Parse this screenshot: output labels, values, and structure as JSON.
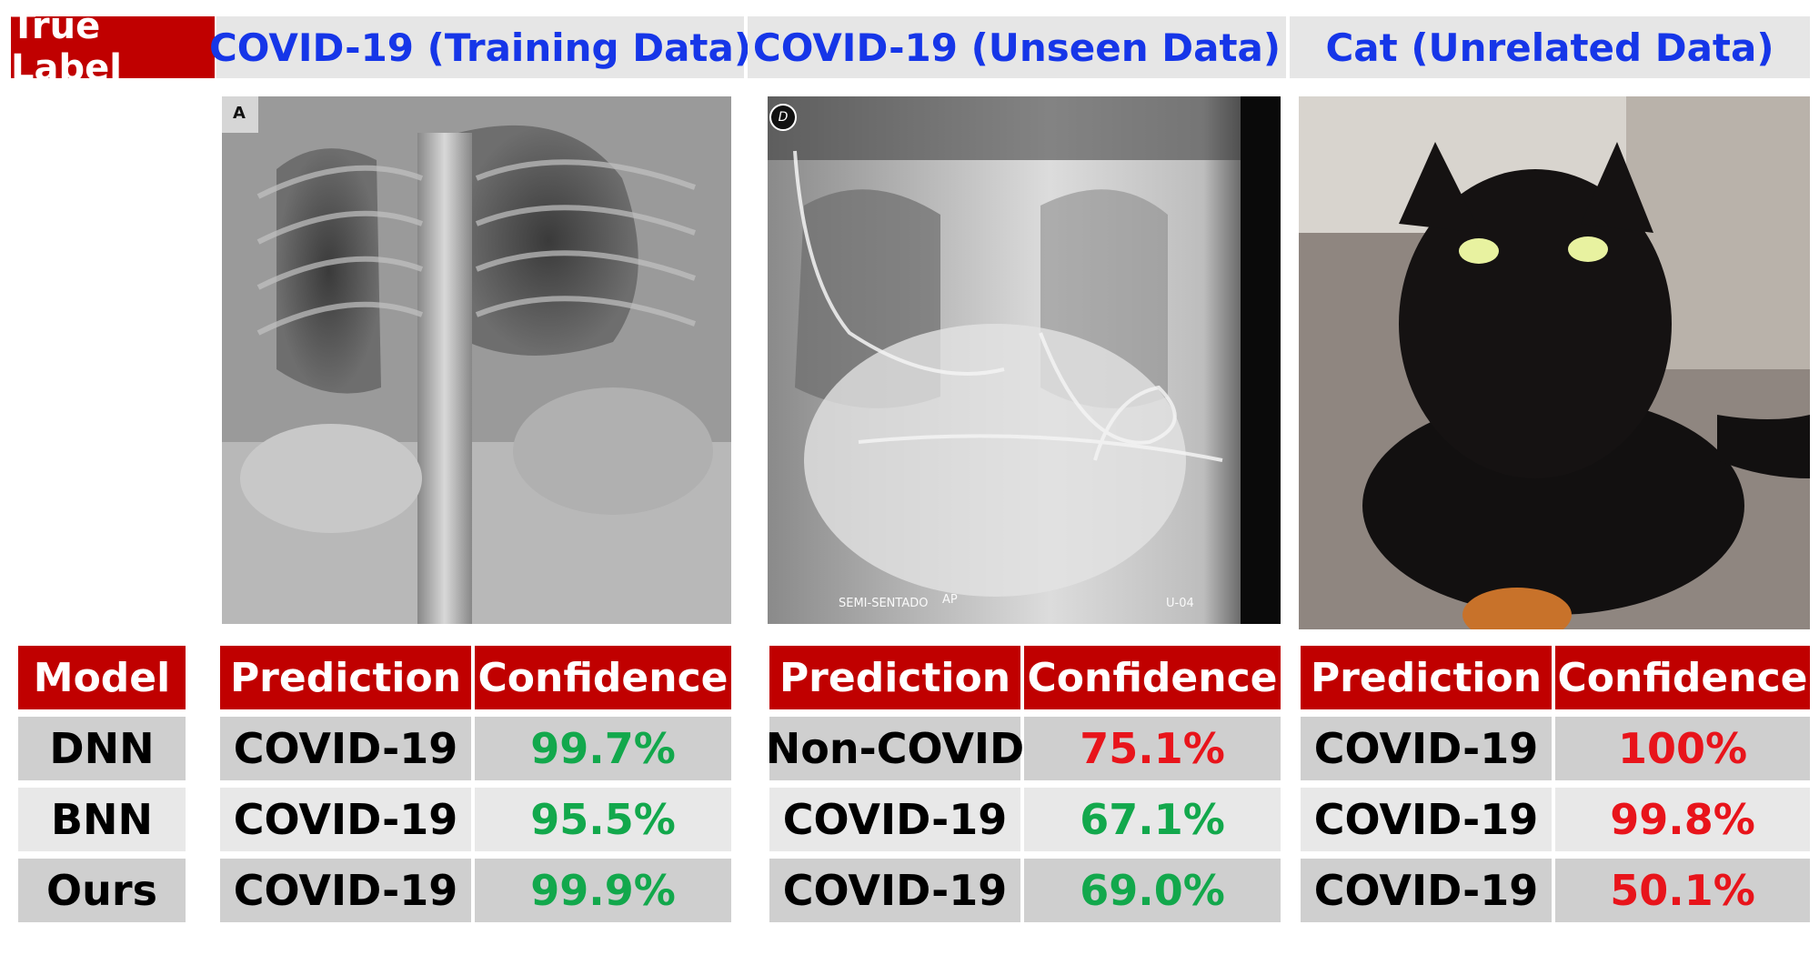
{
  "header": {
    "true_label": "True Label",
    "columns": [
      "COVID-19 (Training Data)",
      "COVID-19 (Unseen Data)",
      "Cat (Unrelated Data)"
    ]
  },
  "images": [
    {
      "name": "chest-xray-training",
      "markers": {
        "corner": "A"
      }
    },
    {
      "name": "chest-xray-unseen",
      "markers": {
        "corner": "D",
        "bottom_left": "SEMI-SENTADO",
        "bottom_mid": "AP",
        "bottom_right": "U-04"
      }
    },
    {
      "name": "black-cat-photo"
    }
  ],
  "table": {
    "model_header": "Model",
    "prediction_header": "Prediction",
    "confidence_header": "Confidence",
    "models": [
      "DNN",
      "BNN",
      "Ours"
    ],
    "groups": [
      {
        "rows": [
          {
            "prediction": "COVID-19",
            "confidence": "99.7%",
            "status": "good"
          },
          {
            "prediction": "COVID-19",
            "confidence": "95.5%",
            "status": "good"
          },
          {
            "prediction": "COVID-19",
            "confidence": "99.9%",
            "status": "good"
          }
        ]
      },
      {
        "rows": [
          {
            "prediction": "Non-COVID",
            "confidence": "75.1%",
            "status": "bad"
          },
          {
            "prediction": "COVID-19",
            "confidence": "67.1%",
            "status": "good"
          },
          {
            "prediction": "COVID-19",
            "confidence": "69.0%",
            "status": "good"
          }
        ]
      },
      {
        "rows": [
          {
            "prediction": "COVID-19",
            "confidence": "100%",
            "status": "bad"
          },
          {
            "prediction": "COVID-19",
            "confidence": "99.8%",
            "status": "bad"
          },
          {
            "prediction": "COVID-19",
            "confidence": "50.1%",
            "status": "bad"
          }
        ]
      }
    ]
  },
  "colors": {
    "header_red": "#c00000",
    "title_blue": "#1636e8",
    "good_green": "#12a84c",
    "bad_red": "#e8141b"
  }
}
